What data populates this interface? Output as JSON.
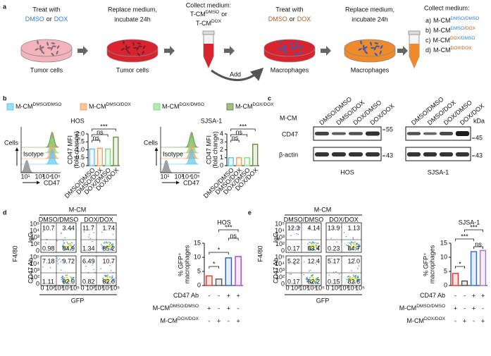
{
  "panel_a": {
    "label": "a",
    "step1": {
      "line1": "Treat with",
      "dmso": "DMSO",
      "or": "or",
      "dox": "DOX",
      "color": "#2f7fd8",
      "caption": "Tumor cells"
    },
    "step2": {
      "line1": "Replace medium,",
      "line2": "incubate 24h",
      "caption": "Tumor cells"
    },
    "step3": {
      "line1": "Collect medium:",
      "line2_base": "T-CM",
      "line2_sup": "DMSO",
      "line2_or": "or",
      "line3_base": "T-CM",
      "line3_sup": "DOX"
    },
    "step4": {
      "line1": "Treat with",
      "dmso": "DMSO",
      "or": "or",
      "dox": "DOX",
      "color": "#b5601c",
      "caption": "Macrophages",
      "add": "Add"
    },
    "step5": {
      "line1": "Replace medium,",
      "line2": "incubate 24h",
      "caption": "Macrophages"
    },
    "step6": {
      "title": "Collect medium:",
      "items": [
        {
          "letter": "a)",
          "base": "M-CM",
          "sup1": "DMSO",
          "sup2": "/DMSO",
          "color1": "#2f7fd8",
          "color2": "#2f7fd8"
        },
        {
          "letter": "b)",
          "base": "M-CM",
          "sup1": "DMSO",
          "sup2": "/DOX",
          "color1": "#2f7fd8",
          "color2": "#c0601a"
        },
        {
          "letter": "c)",
          "base": "M-CM",
          "sup1": "DOX",
          "sup2": "/DMSO",
          "color1": "#c0601a",
          "color2": "#2f7fd8"
        },
        {
          "letter": "d)",
          "base": "M-CM",
          "sup1": "DOX",
          "sup2": "/DOX",
          "color1": "#c0601a",
          "color2": "#c0601a"
        }
      ]
    }
  },
  "panel_b": {
    "label": "b",
    "legend": [
      {
        "base": "M-CM",
        "sup": "DMSO/DMSO",
        "color": "#5bc8ef"
      },
      {
        "base": "M-CM",
        "sup": "DMSO/DOX",
        "color": "#f4a460"
      },
      {
        "base": "M-CM",
        "sup": "DOX/DMSO",
        "color": "#7ee07e"
      },
      {
        "base": "M-CM",
        "sup": "DOX/DOX",
        "color": "#6b8e3a"
      }
    ],
    "histograms": [
      {
        "y_label": "Cells",
        "x_label": "CD47",
        "isotype": "Isotype",
        "xticks": [
          "10¹",
          "10³",
          "10⁴",
          "10⁵"
        ]
      },
      {
        "y_label": "Cells",
        "x_label": "CD47",
        "isotype": "Isotype",
        "xticks": [
          "10¹",
          "10³",
          "10⁴",
          "10⁵"
        ]
      }
    ]
  },
  "panel_c": {
    "label": "c",
    "m_cm": "M-CM",
    "kda": "kDa",
    "lanes": [
      "DMSO/DMSO",
      "DMSO/DOX",
      "DOX/DMSO",
      "DOX/DOX"
    ],
    "cd47": "CD47",
    "actin": "β-actin",
    "blots": [
      {
        "name": "HOS",
        "markers": [
          "55",
          "43"
        ]
      },
      {
        "name": "SJSA-1",
        "markers": [
          "45",
          "43"
        ]
      }
    ]
  },
  "panel_d": {
    "label": "d",
    "m_cm": "M-CM",
    "col_labels": [
      "DMSO/DMSO",
      "DOX/DOX"
    ],
    "row_labels": [
      "IgG",
      "CD47 Ab"
    ],
    "y_label": "F4/80",
    "x_label": "GFP",
    "quadrants": [
      [
        [
          "10.7",
          "3.44",
          "0.98",
          "84.9"
        ],
        [
          "11.7",
          "1.74",
          "1.34",
          "85.2"
        ]
      ],
      [
        [
          "7.18",
          "9.72",
          "1.11",
          "82.0"
        ],
        [
          "6.49",
          "10.7",
          "0.82",
          "82.0"
        ]
      ]
    ]
  },
  "panel_e": {
    "label": "e",
    "m_cm": "M-CM",
    "col_labels": [
      "DMSO/DMSO",
      "DOX/DOX"
    ],
    "row_labels": [
      "IgG",
      "CD47 Ab"
    ],
    "y_label": "F4/80",
    "x_label": "GFP",
    "quadrants": [
      [
        [
          "12.3",
          "4.14",
          "0.17",
          "83.4"
        ],
        [
          "13.9",
          "1.13",
          "0.23",
          "84.7"
        ]
      ],
      [
        [
          "5.22",
          "12.4",
          "0.17",
          "82.2"
        ],
        [
          "5.17",
          "12.0",
          "0.15",
          "82.6"
        ]
      ]
    ]
  },
  "flow_ticks": [
    "0",
    "10²",
    "10³",
    "10⁴",
    "10⁵"
  ],
  "chart_data": [
    {
      "type": "bar",
      "title": "HOS",
      "y_label": [
        "CD47 MFI",
        "(fold change)"
      ],
      "categories": [
        "DMSO/DMSO",
        "DMSO/DOX",
        "DOX/DMSO",
        "DOX/DOX"
      ],
      "values": [
        1.05,
        1.1,
        1.05,
        1.8
      ],
      "colors": [
        "#5bc8ef",
        "#f4a460",
        "#7ee07e",
        "#6b8e3a"
      ],
      "ylim": [
        0,
        2
      ],
      "yticks": [
        0,
        0.5,
        {
          "value": 1,
          "label": "1.0"
        },
        1.5,
        {
          "value": 2,
          "label": "2.0"
        }
      ],
      "annotations": [
        "***",
        "ns",
        "ns"
      ]
    },
    {
      "type": "bar",
      "title": "SJSA-1",
      "y_label": [
        "CD47 MFI",
        "(fold change)"
      ],
      "categories": [
        "DMSO/DMSO",
        "DMSO/DOX",
        "DOX/DMSO",
        "DOX/DOX"
      ],
      "values": [
        1.0,
        1.0,
        1.0,
        2.7
      ],
      "colors": [
        "#5bc8ef",
        "#f4a460",
        "#7ee07e",
        "#6b8e3a"
      ],
      "ylim": [
        0,
        4
      ],
      "yticks": [
        0,
        1,
        2,
        3,
        4
      ],
      "annotations": [
        "***",
        "ns",
        "ns"
      ]
    },
    {
      "type": "bar",
      "title": "HOS",
      "y_label": [
        "% GFP⁺",
        "macrophages"
      ],
      "categories": [
        null,
        null,
        null,
        null
      ],
      "values": [
        3.4,
        2.3,
        9.8,
        10.3
      ],
      "colors": [
        "#e8312b",
        "#555555",
        "#2f5fb0",
        "#a64ac9"
      ],
      "ylim": [
        0,
        15
      ],
      "yticks": [
        0,
        5,
        10,
        15
      ],
      "annotations": [
        "*",
        "*",
        "***",
        "ns"
      ],
      "conditions": [
        {
          "base": "CD47 Ab",
          "sup": "",
          "signs": [
            "-",
            "-",
            "+",
            "+"
          ]
        },
        {
          "base": "M-CM",
          "sup": "DMSO/DMSO",
          "signs": [
            "+",
            "-",
            "+",
            "-"
          ]
        },
        {
          "base": "M-CM",
          "sup": "DOX/DOX",
          "signs": [
            "-",
            "+",
            "-",
            "+"
          ]
        }
      ]
    },
    {
      "type": "bar",
      "title": "SJSA-1",
      "y_label": [
        "% GFP⁺",
        "macrophages"
      ],
      "categories": [
        null,
        null,
        null,
        null
      ],
      "values": [
        4.3,
        1.6,
        12.0,
        12.4
      ],
      "colors": [
        "#e8312b",
        "#4a4a4a",
        "#2e6bd1",
        "#b06ad0"
      ],
      "ylim": [
        0,
        15
      ],
      "yticks": [
        0,
        5,
        10,
        15
      ],
      "annotations": [
        "*",
        "***",
        "***",
        "ns"
      ],
      "conditions": [
        {
          "base": "CD47 Ab",
          "sup": "",
          "signs": [
            "-",
            "-",
            "+",
            "+"
          ]
        },
        {
          "base": "M-CM",
          "sup": "DMSO/DMSO",
          "signs": [
            "+",
            "-",
            "+",
            "-"
          ]
        },
        {
          "base": "M-CM",
          "sup": "DOX/DOX",
          "signs": [
            "-",
            "+",
            "-",
            "+"
          ]
        }
      ]
    }
  ]
}
